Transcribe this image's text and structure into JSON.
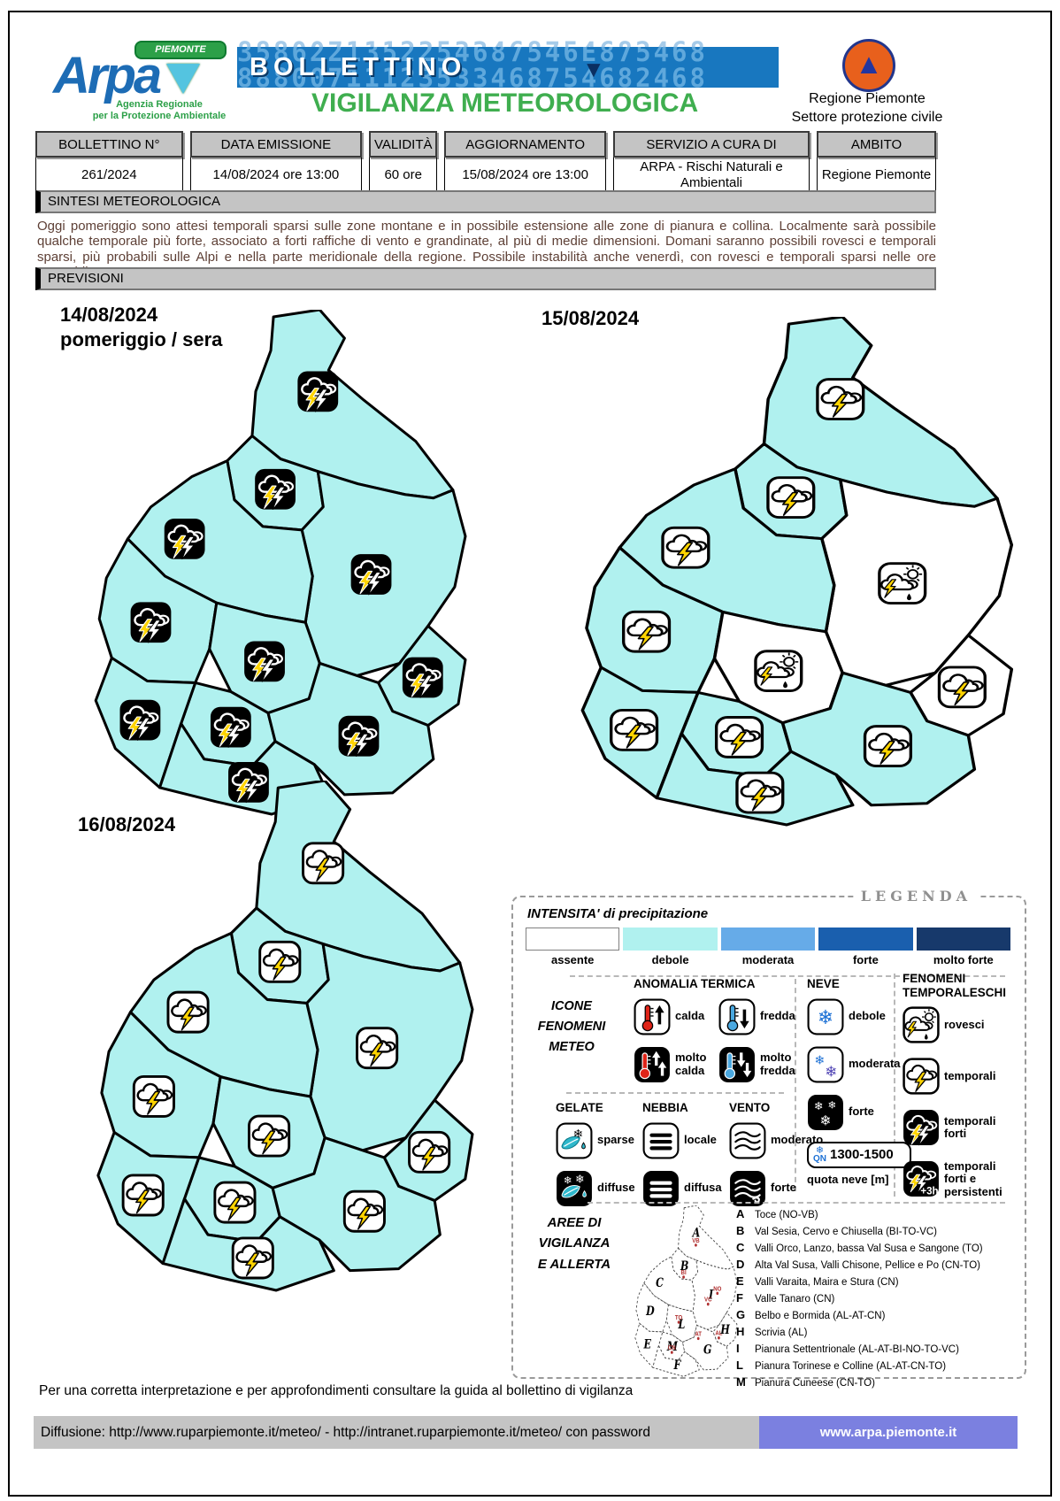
{
  "page": {
    "logo": {
      "brand": "Arpa",
      "ribbon": "PIEMONTE",
      "sub1": "Agenzia Regionale",
      "sub2": "per la Protezione Ambientale"
    },
    "banner": {
      "title": "BOLLETTINO",
      "arrow": "▼",
      "digits_row1": "88800711123533468754682468",
      "digits_row2": "3586221352254687546E875468",
      "subtitle": "VIGILANZA METEOROLOGICA"
    },
    "org": {
      "line1": "Regione Piemonte",
      "line2": "Settore protezione civile"
    }
  },
  "info_table": {
    "columns": [
      {
        "label": "BOLLETTINO N°",
        "value": "261/2024"
      },
      {
        "label": "DATA EMISSIONE",
        "value": "14/08/2024 ore 13:00"
      },
      {
        "label": "VALIDITÀ",
        "value": "60 ore"
      },
      {
        "label": "AGGIORNAMENTO",
        "value": "15/08/2024 ore 13:00"
      },
      {
        "label": "SERVIZIO A CURA DI",
        "value": "ARPA - Rischi Naturali e Ambientali"
      },
      {
        "label": "AMBITO",
        "value": "Regione Piemonte"
      }
    ]
  },
  "sintesi": {
    "title": "SINTESI METEOROLOGICA",
    "text": "Oggi pomeriggio sono attesi temporali sparsi sulle zone montane e in possibile estensione alle zone di pianura e collina. Localmente sarà possibile qualche temporale più forte, associato a forti raffiche di vento e grandinate, al più di medie dimensioni. Domani saranno possibili rovesci e temporali sparsi, più probabili sulle Alpi e nella parte meridionale della regione. Possibile instabilità anche venerdì, con rovesci e temporali sparsi nelle ore pomeridiane."
  },
  "previsioni": {
    "title": "PREVISIONI"
  },
  "maps": [
    {
      "date": "14/08/2024",
      "sublabel": "pomeriggio / sera",
      "white_zones": [],
      "icons": {
        "A": "temporali_forti",
        "B": "temporali_forti",
        "C": "temporali_forti",
        "I": "temporali_forti",
        "L": "temporali_forti",
        "D": "temporali_forti",
        "H": "temporali_forti",
        "M": "temporali_forti",
        "G": "temporali_forti",
        "E": "temporali_forti",
        "F": "temporali_forti"
      }
    },
    {
      "date": "15/08/2024",
      "sublabel": "",
      "white_zones": [
        "I",
        "L",
        "H"
      ],
      "icons": {
        "A": "temporali",
        "B": "temporali",
        "C": "temporali",
        "I": "rovesci",
        "L": "rovesci",
        "D": "temporali",
        "H": "temporali",
        "M": "temporali",
        "G": "temporali",
        "E": "temporali",
        "F": "temporali"
      }
    },
    {
      "date": "16/08/2024",
      "sublabel": "",
      "white_zones": [],
      "icons": {
        "A": "temporali",
        "B": "temporali",
        "C": "temporali",
        "I": "temporali",
        "L": "temporali",
        "D": "temporali",
        "H": "temporali",
        "M": "temporali",
        "G": "temporali",
        "E": "temporali",
        "F": "temporali"
      }
    }
  ],
  "legend": {
    "title": "LEGENDA",
    "intensity": {
      "title": "INTENSITA'  di precipitazione",
      "levels": [
        {
          "label": "assente",
          "color": "#ffffff"
        },
        {
          "label": "debole",
          "color": "#b0f1ef"
        },
        {
          "label": "moderata",
          "color": "#66abe8"
        },
        {
          "label": "forte",
          "color": "#1a5fae"
        },
        {
          "label": "molto forte",
          "color": "#17396b"
        }
      ]
    },
    "icone_lines": [
      "ICONE",
      "FENOMENI",
      "METEO"
    ],
    "anomalia": {
      "title": "ANOMALIA TERMICA",
      "items": [
        {
          "icon": "therm_calda",
          "label": "calda"
        },
        {
          "icon": "therm_fredda",
          "label": "fredda"
        },
        {
          "icon": "therm_molto_calda",
          "label": "molto calda"
        },
        {
          "icon": "therm_molto_fredda",
          "label": "molto fredda"
        }
      ]
    },
    "neve": {
      "title": "NEVE",
      "items": [
        {
          "icon": "neve_debole",
          "label": "debole"
        },
        {
          "icon": "neve_moderata",
          "label": "moderata"
        },
        {
          "icon": "neve_forte",
          "label": "forte"
        }
      ],
      "quota": {
        "prefix": "QN",
        "value": "1300-1500",
        "caption": "quota neve [m]"
      }
    },
    "fenomeni": {
      "title": "FENOMENI TEMPORALESCHI",
      "items": [
        {
          "icon": "rovesci",
          "label": "rovesci"
        },
        {
          "icon": "temporali",
          "label": "temporali"
        },
        {
          "icon": "temporali_forti",
          "label": "temporali forti"
        },
        {
          "icon": "temporali_forti_pers",
          "label": "temporali forti e persistenti"
        }
      ]
    },
    "gelate": {
      "title": "GELATE",
      "items": [
        {
          "icon": "gelate_sparse",
          "label": "sparse"
        },
        {
          "icon": "gelate_diffuse",
          "label": "diffuse"
        }
      ]
    },
    "nebbia": {
      "title": "NEBBIA",
      "items": [
        {
          "icon": "nebbia_locale",
          "label": "locale"
        },
        {
          "icon": "nebbia_diffusa",
          "label": "diffusa"
        }
      ]
    },
    "vento": {
      "title": "VENTO",
      "items": [
        {
          "icon": "vento_moderato",
          "label": "moderato"
        },
        {
          "icon": "vento_forte",
          "label": "forte"
        }
      ]
    },
    "aree": {
      "title_lines": [
        "AREE DI",
        "VIGILANZA",
        "E ALLERTA"
      ],
      "items": [
        {
          "code": "A",
          "name": "Toce (NO-VB)"
        },
        {
          "code": "B",
          "name": "Val Sesia, Cervo e Chiusella (BI-TO-VC)"
        },
        {
          "code": "C",
          "name": "Valli Orco, Lanzo, bassa Val Susa e Sangone (TO)"
        },
        {
          "code": "D",
          "name": "Alta Val Susa, Valli Chisone, Pellice e Po (CN-TO)"
        },
        {
          "code": "E",
          "name": "Valli Varaita, Maira e Stura (CN)"
        },
        {
          "code": "F",
          "name": "Valle Tanaro (CN)"
        },
        {
          "code": "G",
          "name": "Belbo e Bormida (AL-AT-CN)"
        },
        {
          "code": "H",
          "name": "Scrivia (AL)"
        },
        {
          "code": "I",
          "name": "Pianura Settentrionale (AL-AT-BI-NO-TO-VC)"
        },
        {
          "code": "L",
          "name": "Pianura Torinese e Colline (AL-AT-CN-TO)"
        },
        {
          "code": "M",
          "name": "Pianura Cuneese (CN-TO)"
        }
      ],
      "cities": [
        "VB",
        "BI",
        "NO",
        "VC",
        "TO",
        "AT",
        "AL",
        "CN"
      ]
    }
  },
  "footer": {
    "note": "Per una corretta interpretazione e per approfondimenti consultare la guida al bollettino di vigilanza",
    "diffusione": "Diffusione: http://www.ruparpiemonte.it/meteo/ - http://intranet.ruparpiemonte.it/meteo/ con password",
    "site": "www.arpa.piemonte.it"
  },
  "colors": {
    "map_cyan": "#b0f1ef",
    "accent_green": "#3fae4f",
    "banner_blue": "#1877bf",
    "site_bg": "#7b80e0",
    "bar_gray": "#c4c4c4",
    "city_red": "#b03030"
  }
}
